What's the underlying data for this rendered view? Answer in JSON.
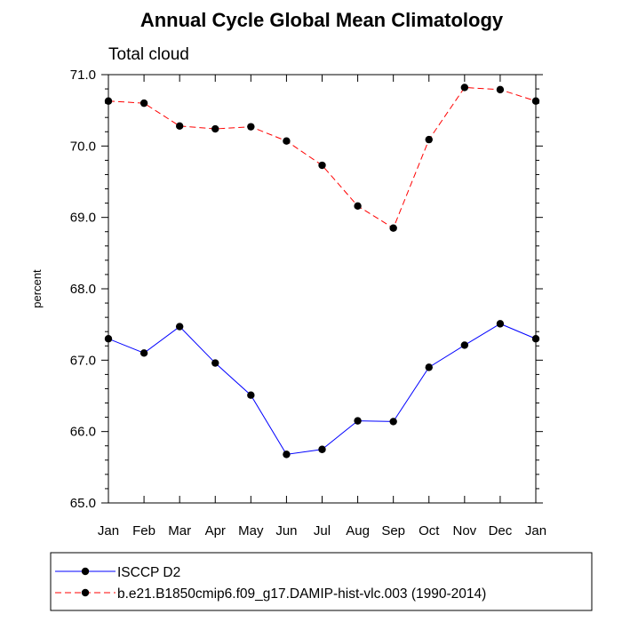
{
  "chart_data": {
    "type": "line",
    "title": "Annual Cycle Global Mean Climatology",
    "subtitle": "Total cloud",
    "xlabel": "",
    "ylabel": "percent",
    "categories": [
      "Jan",
      "Feb",
      "Mar",
      "Apr",
      "May",
      "Jun",
      "Jul",
      "Aug",
      "Sep",
      "Oct",
      "Nov",
      "Dec",
      "Jan"
    ],
    "ylim": [
      65.0,
      71.0
    ],
    "yticks": [
      "65.0",
      "66.0",
      "67.0",
      "68.0",
      "69.0",
      "70.0",
      "71.0"
    ],
    "grid": false,
    "legend_position": "bottom",
    "series": [
      {
        "name": "ISCCP D2",
        "color": "#0000ff",
        "line_style": "solid",
        "marker": "filled-circle",
        "values": [
          67.3,
          67.1,
          67.47,
          66.96,
          66.51,
          65.68,
          65.75,
          66.15,
          66.14,
          66.9,
          67.21,
          67.51,
          67.3
        ]
      },
      {
        "name": "b.e21.B1850cmip6.f09_g17.DAMIP-hist-vlc.003 (1990-2014)",
        "color": "#ff0000",
        "line_style": "dashed",
        "marker": "filled-circle",
        "values": [
          70.63,
          70.6,
          70.28,
          70.24,
          70.27,
          70.07,
          69.73,
          69.16,
          68.85,
          70.09,
          70.82,
          70.79,
          70.63
        ]
      }
    ]
  }
}
